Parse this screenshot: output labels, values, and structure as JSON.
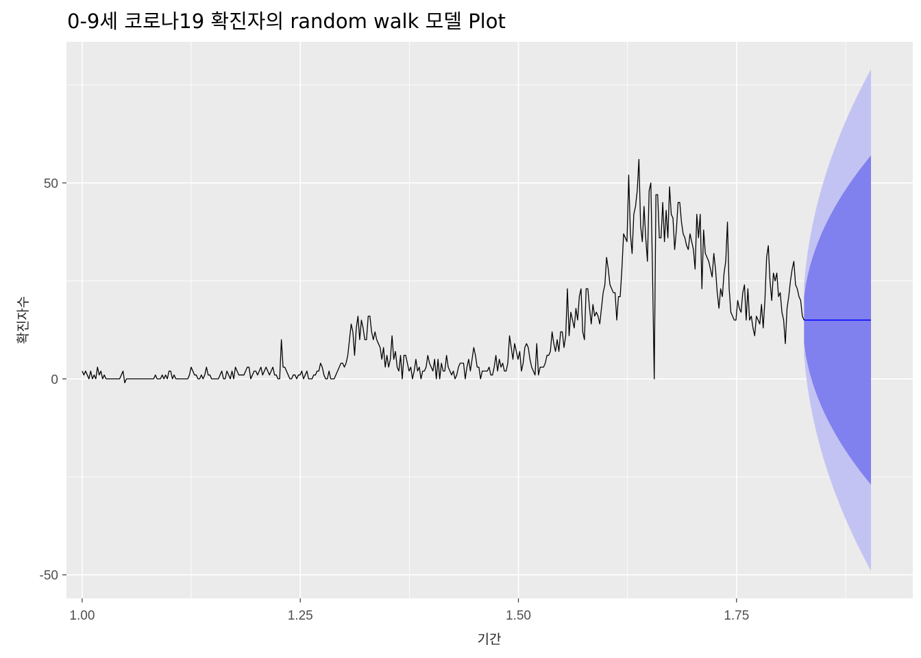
{
  "chart_data": {
    "type": "line",
    "title": "0-9세 코로나19 확진자의 random walk 모델 Plot",
    "xlabel": "기간",
    "ylabel": "확진자수",
    "xlim": [
      0.982,
      1.952
    ],
    "ylim": [
      -56,
      86
    ],
    "x_ticks": [
      1.0,
      1.25,
      1.5,
      1.75
    ],
    "x_tick_labels": [
      "1.00",
      "1.25",
      "1.50",
      "1.75"
    ],
    "y_ticks": [
      -50,
      0,
      50
    ],
    "y_tick_labels": [
      "-50",
      "0",
      "50"
    ],
    "grid": true,
    "legend": "none",
    "colors": {
      "panel_bg": "#EBEBEB",
      "grid": "#FFFFFF",
      "observed": "#000000",
      "forecast_mean": "#0000FF",
      "pi80": "#8080EE",
      "pi95": "#C3C3F3"
    },
    "observed": {
      "x_start": 1.0,
      "x_end": 1.8274,
      "values": [
        2,
        1,
        2,
        1,
        0,
        2,
        0,
        1,
        0,
        3,
        1,
        2,
        0,
        1,
        0,
        0,
        0,
        0,
        0,
        0,
        0,
        0,
        0,
        1,
        2,
        -1,
        0,
        0,
        0,
        0,
        0,
        0,
        0,
        0,
        0,
        0,
        0,
        0,
        0,
        0,
        0,
        0,
        0,
        1,
        0,
        0,
        0,
        1,
        0,
        1,
        0,
        2,
        2,
        0,
        1,
        0,
        0,
        0,
        0,
        0,
        0,
        0,
        0,
        1,
        3,
        2,
        1,
        1,
        0,
        0,
        1,
        0,
        1,
        3,
        1,
        1,
        0,
        0,
        0,
        0,
        0,
        1,
        2,
        0,
        0,
        2,
        1,
        0,
        2,
        0,
        3,
        2,
        1,
        1,
        1,
        1,
        2,
        3,
        3,
        0,
        1,
        2,
        2,
        1,
        2,
        3,
        1,
        2,
        3,
        2,
        1,
        2,
        3,
        1,
        1,
        0,
        0,
        10,
        3,
        3,
        2,
        1,
        0,
        0,
        1,
        1,
        0,
        1,
        1,
        2,
        0,
        1,
        2,
        0,
        0,
        0,
        1,
        1,
        2,
        2,
        4,
        3,
        1,
        0,
        0,
        2,
        0,
        0,
        0,
        1,
        2,
        3,
        4,
        4,
        3,
        4,
        6,
        10,
        14,
        12,
        6,
        13,
        16,
        10,
        15,
        13,
        10,
        10,
        16,
        16,
        12,
        10,
        12,
        10,
        9,
        8,
        5,
        8,
        3,
        6,
        3,
        5,
        11,
        5,
        7,
        3,
        2,
        6,
        0,
        6,
        6,
        4,
        2,
        3,
        0,
        2,
        5,
        2,
        3,
        0,
        2,
        2,
        3,
        6,
        4,
        3,
        2,
        5,
        0,
        5,
        0,
        4,
        2,
        2,
        6,
        3,
        2,
        1,
        2,
        0,
        1,
        3,
        4,
        4,
        4,
        0,
        3,
        5,
        2,
        5,
        8,
        6,
        3,
        3,
        0,
        2,
        2,
        2,
        2,
        3,
        1,
        1,
        3,
        6,
        2,
        5,
        3,
        4,
        2,
        2,
        4,
        11,
        8,
        5,
        9,
        7,
        5,
        7,
        2,
        4,
        8,
        9,
        8,
        5,
        3,
        2,
        1,
        9,
        1,
        3,
        3,
        3,
        4,
        6,
        6,
        7,
        12,
        9,
        7,
        10,
        7,
        12,
        12,
        8,
        11,
        23,
        11,
        17,
        15,
        13,
        18,
        15,
        21,
        23,
        12,
        10,
        23,
        23,
        18,
        14,
        19,
        16,
        17,
        16,
        14,
        18,
        22,
        24,
        31,
        28,
        24,
        23,
        22,
        22,
        15,
        21,
        21,
        28,
        37,
        36,
        35,
        52,
        37,
        32,
        42,
        44,
        48,
        56,
        39,
        35,
        44,
        36,
        30,
        48,
        50,
        27,
        0,
        47,
        47,
        36,
        36,
        45,
        35,
        43,
        36,
        49,
        42,
        41,
        33,
        38,
        45,
        45,
        40,
        37,
        36,
        34,
        33,
        37,
        35,
        33,
        28,
        42,
        36,
        42,
        23,
        38,
        32,
        31,
        30,
        28,
        26,
        32,
        28,
        22,
        18,
        23,
        21,
        27,
        30,
        40,
        23,
        17,
        16,
        15,
        15,
        20,
        18,
        17,
        22,
        24,
        15,
        23,
        15,
        16,
        13,
        11,
        16,
        15,
        14,
        19,
        13,
        20,
        31,
        34,
        25,
        20,
        27,
        25,
        27,
        21,
        22,
        17,
        15,
        9,
        18,
        21,
        25,
        28,
        30,
        24,
        23,
        21,
        20,
        16,
        15
      ]
    },
    "forecast": {
      "x_start": 1.8274,
      "x_end": 1.9041,
      "mean": 15,
      "pi80_halfwidth_at_end": 42,
      "pi95_halfwidth_at_end": 64
    }
  }
}
